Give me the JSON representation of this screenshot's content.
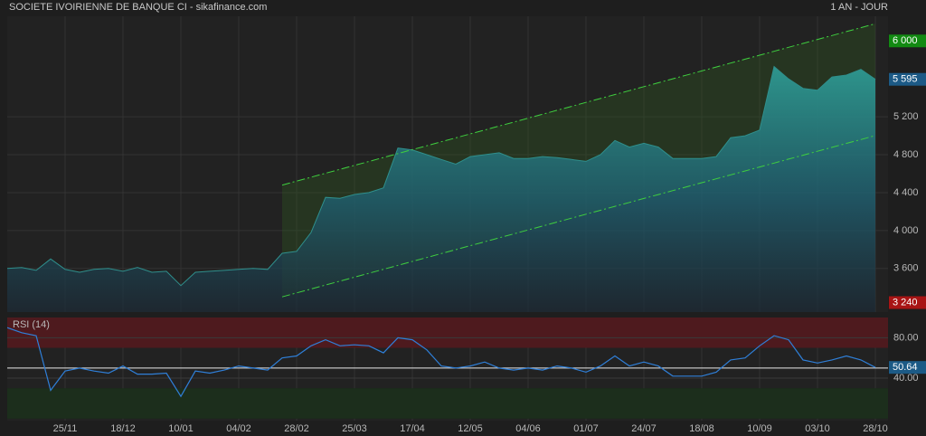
{
  "header": {
    "title": "SOCIETE IVOIRIENNE DE BANQUE CI - sikafinance.com",
    "period": "1 AN - JOUR"
  },
  "chart_data": [
    {
      "type": "area",
      "categories": [
        null,
        null,
        null,
        null,
        "25/11",
        null,
        null,
        null,
        "18/12",
        null,
        null,
        null,
        "10/01",
        null,
        null,
        null,
        "04/02",
        null,
        null,
        null,
        "28/02",
        null,
        null,
        null,
        "25/03",
        null,
        null,
        null,
        "17/04",
        null,
        null,
        null,
        "12/05",
        null,
        null,
        null,
        "04/06",
        null,
        null,
        null,
        "01/07",
        null,
        null,
        null,
        "24/07",
        null,
        null,
        null,
        "18/08",
        null,
        null,
        null,
        "10/09",
        null,
        null,
        null,
        "03/10",
        null,
        null,
        null,
        "28/10"
      ],
      "series": [
        {
          "color": "#2f8f8c",
          "values": [
            3600,
            3610,
            3580,
            3700,
            3590,
            3560,
            3590,
            3600,
            3570,
            3610,
            3560,
            3570,
            3420,
            3560,
            3570,
            3580,
            3590,
            3600,
            3590,
            3760,
            3780,
            3980,
            4350,
            4340,
            4380,
            4400,
            4450,
            4870,
            4850,
            4800,
            4750,
            4700,
            4780,
            4800,
            4820,
            4760,
            4760,
            4780,
            4770,
            4750,
            4730,
            4800,
            4950,
            4880,
            4920,
            4880,
            4760,
            4760,
            4760,
            4780,
            4980,
            5000,
            5060,
            5730,
            5600,
            5500,
            5480,
            5620,
            5640,
            5700,
            5595
          ]
        },
        {
          "color": "#3fcf3f",
          "values": [
            null,
            null,
            null,
            null,
            null,
            null,
            null,
            null,
            null,
            null,
            null,
            null,
            null,
            null,
            null,
            null,
            null,
            null,
            null,
            4480,
            4522,
            4563,
            4605,
            4646,
            4688,
            4729,
            4771,
            4812,
            4854,
            4895,
            4937,
            4978,
            5020,
            5061,
            5103,
            5144,
            5186,
            5227,
            5269,
            5310,
            5352,
            5393,
            5435,
            5476,
            5518,
            5559,
            5601,
            5642,
            5684,
            5725,
            5767,
            5808,
            5850,
            5891,
            5933,
            5974,
            6016,
            6057,
            6099,
            6140,
            6182
          ]
        },
        {
          "color": "#3fcf3f",
          "values": [
            null,
            null,
            null,
            null,
            null,
            null,
            null,
            null,
            null,
            null,
            null,
            null,
            null,
            null,
            null,
            null,
            null,
            null,
            null,
            3300,
            3342,
            3383,
            3425,
            3466,
            3508,
            3549,
            3591,
            3632,
            3674,
            3715,
            3757,
            3798,
            3840,
            3881,
            3923,
            3964,
            4006,
            4047,
            4089,
            4130,
            4172,
            4213,
            4255,
            4296,
            4338,
            4379,
            4421,
            4462,
            4504,
            4545,
            4587,
            4628,
            4670,
            4711,
            4753,
            4794,
            4836,
            4877,
            4919,
            4960,
            5002
          ]
        }
      ],
      "ylim": [
        3140,
        6260
      ],
      "yticks": [
        {
          "value": 3600,
          "label": "3 600"
        },
        {
          "value": 4000,
          "label": "4 000"
        },
        {
          "value": 4400,
          "label": "4 400"
        },
        {
          "value": 4800,
          "label": "4 800"
        },
        {
          "value": 5200,
          "label": "5 200"
        }
      ],
      "markers": [
        {
          "value": 6000,
          "label": "6 000",
          "color": "#128a12"
        },
        {
          "value": 5595,
          "label": "5 595",
          "color": "#1c5a86"
        },
        {
          "value": 3240,
          "label": "3 240",
          "color": "#a81414"
        }
      ],
      "grid": true
    },
    {
      "type": "line",
      "name": "RSI (14)",
      "color": "#2f7fd8",
      "values": [
        90,
        85,
        82,
        28,
        47,
        50,
        47,
        45,
        52,
        44,
        44,
        45,
        22,
        47,
        45,
        48,
        52,
        50,
        48,
        60,
        62,
        72,
        78,
        72,
        73,
        72,
        65,
        80,
        78,
        68,
        52,
        50,
        52,
        56,
        50,
        48,
        50,
        48,
        52,
        50,
        46,
        52,
        62,
        52,
        56,
        52,
        42,
        42,
        42,
        46,
        58,
        60,
        72,
        82,
        78,
        58,
        55,
        58,
        62,
        58,
        50.64
      ],
      "ylim": [
        -2,
        100
      ],
      "yticks": [
        {
          "value": 40,
          "label": "40.00"
        },
        {
          "value": 80,
          "label": "80.00"
        }
      ],
      "zones": [
        {
          "from": 70,
          "to": 100,
          "color": "#4e1a1e"
        },
        {
          "from": 0,
          "to": 30,
          "color": "#1c2e1c"
        }
      ],
      "level": 50,
      "markers": [
        {
          "value": 50.64,
          "label": "50.64",
          "color": "#1c5a86"
        }
      ],
      "grid": true
    }
  ]
}
